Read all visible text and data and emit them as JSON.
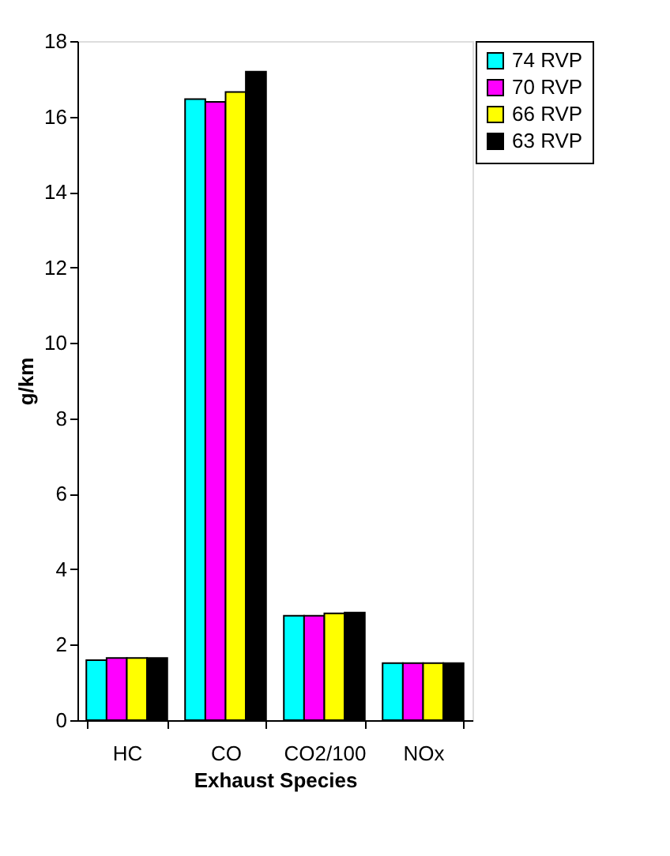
{
  "chart_data": {
    "type": "bar",
    "xlabel": "Exhaust Species",
    "ylabel": "g/km",
    "categories": [
      "HC",
      "CO",
      "CO2/100",
      "NOx"
    ],
    "series": [
      {
        "name": "74 RVP",
        "color": "#00ffff",
        "values": [
          1.59,
          16.46,
          2.77,
          1.51
        ]
      },
      {
        "name": "70 RVP",
        "color": "#ff00ff",
        "values": [
          1.65,
          16.39,
          2.77,
          1.51
        ]
      },
      {
        "name": "66 RVP",
        "color": "#ffff00",
        "values": [
          1.65,
          16.65,
          2.83,
          1.51
        ]
      },
      {
        "name": "63 RVP",
        "color": "#000000",
        "values": [
          1.65,
          17.19,
          2.85,
          1.51
        ]
      }
    ],
    "ylim": [
      0,
      18
    ],
    "yticks": [
      0,
      2,
      4,
      6,
      8,
      10,
      12,
      14,
      16,
      18
    ],
    "grid": false,
    "legend": "right"
  }
}
